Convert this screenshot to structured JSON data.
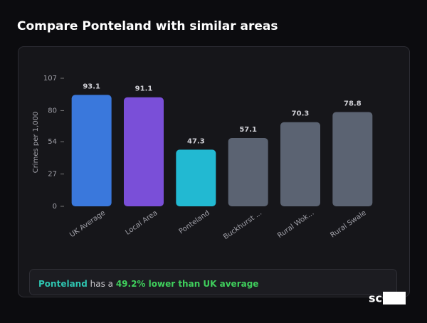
{
  "header": {
    "title": "Compare Ponteland with similar areas"
  },
  "chart_data": {
    "type": "bar",
    "y_label": "Crimes per 1,000",
    "categories": [
      "UK Average",
      "Local Area",
      "Ponteland",
      "Buckhurst ...",
      "Rural Wok...",
      "Rural Swale"
    ],
    "values": [
      93.1,
      91.1,
      47.3,
      57.1,
      70.3,
      78.8
    ],
    "colors": [
      "#3a78dc",
      "#7a4fd8",
      "#22b9d2",
      "#5b6372",
      "#5b6372",
      "#5b6372"
    ],
    "ylim": [
      0,
      107
    ],
    "yticks": [
      0,
      27,
      54,
      80,
      107
    ]
  },
  "insight": {
    "area": "Ponteland",
    "middle": " has a ",
    "highlight": "49.2% lower than UK average"
  },
  "logo": "scOS"
}
